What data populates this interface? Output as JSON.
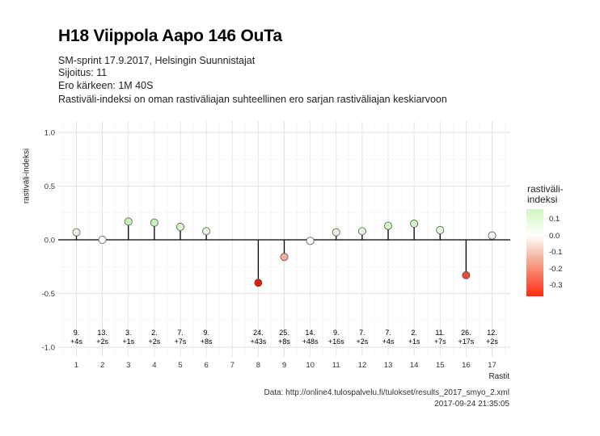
{
  "title": "H18 Viippola Aapo 146 OuTa",
  "subtitle_lines": [
    "SM-sprint 17.9.2017, Helsingin Suunnistajat",
    "Sijoitus: 11",
    "Ero kärkeen: 1M 40S",
    "Rastiväli-indeksi on oman rastiväliajan suhteellinen ero sarjan rastiväliajan keskiarvoon"
  ],
  "caption_lines": [
    "Data: http://online4.tulospalvelu.fi/tulokset/results_2017_smyo_2.xml",
    "2017-09-24 21:35:05"
  ],
  "legend": {
    "title": "rastiväli-\nindeksi",
    "ticks": [
      "0.1",
      "0.0",
      "-0.1",
      "-0.2",
      "-0.3"
    ]
  },
  "chart_data": {
    "type": "lollipop",
    "xlabel": "Rastit",
    "ylabel": "rastiväli-indeksi",
    "ylim": [
      -1.0,
      1.0
    ],
    "yticks": [
      "1.0",
      "0.5",
      "0.0",
      "-0.5",
      "-1.0"
    ],
    "xticks": [
      "1",
      "2",
      "3",
      "4",
      "5",
      "6",
      "7",
      "8",
      "9",
      "10",
      "11",
      "12",
      "13",
      "14",
      "15",
      "16",
      "17"
    ],
    "grid": true,
    "legend_position": "right",
    "points": [
      {
        "x": 1,
        "y": 0.07,
        "label1": "9.",
        "label2": "+4s",
        "color": "#e6f8df"
      },
      {
        "x": 2,
        "y": 0.0,
        "label1": "13.",
        "label2": "+2s",
        "color": "#ffffff"
      },
      {
        "x": 3,
        "y": 0.17,
        "label1": "3.",
        "label2": "+1s",
        "color": "#c9f3b6"
      },
      {
        "x": 4,
        "y": 0.16,
        "label1": "2.",
        "label2": "+2s",
        "color": "#cbf3b9"
      },
      {
        "x": 5,
        "y": 0.12,
        "label1": "7.",
        "label2": "+7s",
        "color": "#d6f5c9"
      },
      {
        "x": 6,
        "y": 0.08,
        "label1": "9.",
        "label2": "+8s",
        "color": "#e2f7d9"
      },
      {
        "x": 8,
        "y": -0.4,
        "label1": "24.",
        "label2": "+43s",
        "color": "#e8180d"
      },
      {
        "x": 9,
        "y": -0.16,
        "label1": "25.",
        "label2": "+8s",
        "color": "#f6ad96"
      },
      {
        "x": 10,
        "y": -0.01,
        "label1": "14.",
        "label2": "+48s",
        "color": "#ffffff"
      },
      {
        "x": 11,
        "y": 0.07,
        "label1": "9.",
        "label2": "+16s",
        "color": "#e4f8dc"
      },
      {
        "x": 12,
        "y": 0.08,
        "label1": "7.",
        "label2": "+2s",
        "color": "#e1f7d8"
      },
      {
        "x": 13,
        "y": 0.13,
        "label1": "7.",
        "label2": "+4s",
        "color": "#d4f5c6"
      },
      {
        "x": 14,
        "y": 0.15,
        "label1": "2.",
        "label2": "+1s",
        "color": "#cef4bd"
      },
      {
        "x": 15,
        "y": 0.09,
        "label1": "11.",
        "label2": "+7s",
        "color": "#dff7d5"
      },
      {
        "x": 16,
        "y": -0.33,
        "label1": "26.",
        "label2": "+17s",
        "color": "#ec4b38"
      },
      {
        "x": 17,
        "y": 0.04,
        "label1": "12.",
        "label2": "+2s",
        "color": "#f1fbee"
      }
    ]
  }
}
